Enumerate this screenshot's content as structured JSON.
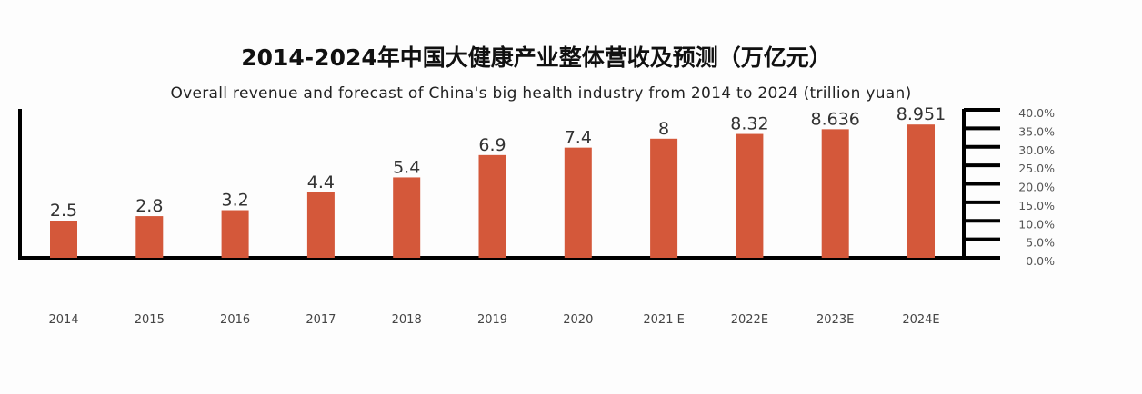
{
  "chart_data": {
    "type": "bar",
    "title": "2014-2024年中国大健康产业整体营收及预测（万亿元）",
    "subtitle": "Overall revenue and forecast of China's big health industry from 2014 to 2024 (trillion yuan)",
    "categories": [
      "2014",
      "2015",
      "2016",
      "2017",
      "2018",
      "2019",
      "2020",
      "2021 E",
      "2022E",
      "2023E",
      "2024E"
    ],
    "values": [
      2.5,
      2.8,
      3.2,
      4.4,
      5.4,
      6.9,
      7.4,
      8,
      8.32,
      8.636,
      8.951
    ],
    "value_labels": [
      "2.5",
      "2.8",
      "3.2",
      "4.4",
      "5.4",
      "6.9",
      "7.4",
      "8",
      "8.32",
      "8.636",
      "8.951"
    ],
    "right_axis_ticks": [
      "0.0%",
      "5.0%",
      "10.0%",
      "15.0%",
      "20.0%",
      "25.0%",
      "30.0%",
      "35.0%",
      "40.0%"
    ],
    "right_axis_range": [
      0,
      40
    ],
    "grid": false,
    "bar_color": "#d4583a"
  }
}
